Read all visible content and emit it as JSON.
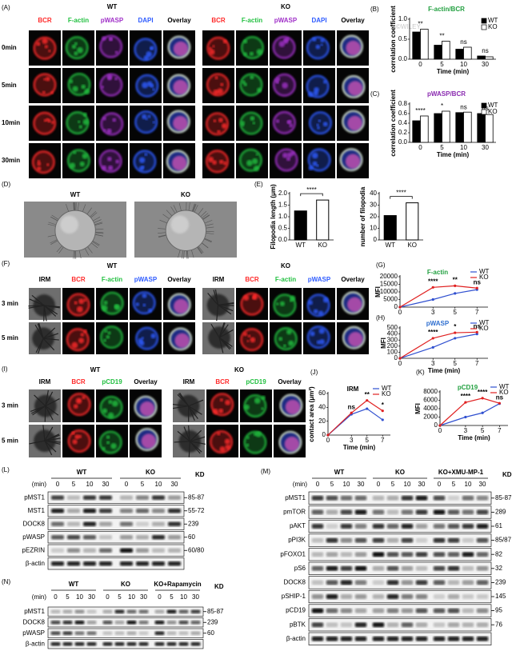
{
  "watermark": "©WILEY",
  "A": {
    "panel": "(A)",
    "groups": [
      "WT",
      "KO"
    ],
    "channels": [
      {
        "name": "BCR",
        "color": "#ff2a2a"
      },
      {
        "name": "F-actin",
        "color": "#22c040"
      },
      {
        "name": "pWASP",
        "color": "#a030c8"
      },
      {
        "name": "DAPI",
        "color": "#2f5cff"
      },
      {
        "name": "Overlay",
        "color": "#000000"
      }
    ],
    "rows": [
      "0min",
      "5min",
      "10min",
      "30min"
    ]
  },
  "D": {
    "panel": "(D)",
    "groups": [
      "WT",
      "KO"
    ]
  },
  "F": {
    "panel": "(F)",
    "groups": [
      "WT",
      "KO"
    ],
    "channels": [
      {
        "name": "IRM",
        "color": "#000000"
      },
      {
        "name": "BCR",
        "color": "#ff2a2a"
      },
      {
        "name": "F-actin",
        "color": "#22c040"
      },
      {
        "name": "pWASP",
        "color": "#2f5cff"
      },
      {
        "name": "Overlay",
        "color": "#000000"
      }
    ],
    "rows": [
      "3 min",
      "5 min"
    ]
  },
  "I": {
    "panel": "(I)",
    "groups": [
      "WT",
      "KO"
    ],
    "channels": [
      {
        "name": "IRM",
        "color": "#000000"
      },
      {
        "name": "BCR",
        "color": "#ff2a2a"
      },
      {
        "name": "pCD19",
        "color": "#22c040"
      },
      {
        "name": "Overlay",
        "color": "#000000"
      }
    ],
    "rows": [
      "3 min",
      "5 min"
    ]
  },
  "L": {
    "panel": "(L)",
    "unit": "(min)",
    "kd_label": "KD",
    "groups": [
      "WT",
      "KO"
    ],
    "times": [
      0,
      5,
      10,
      30
    ],
    "rows": [
      {
        "name": "pMST1",
        "kd": "85-87"
      },
      {
        "name": "MST1",
        "kd": "55-72"
      },
      {
        "name": "DOCK8",
        "kd": "239"
      },
      {
        "name": "pWASP",
        "kd": "60"
      },
      {
        "name": "pEZRIN",
        "kd": "60/80"
      },
      {
        "name": "β-actin"
      }
    ]
  },
  "M": {
    "panel": "(M)",
    "unit": "(min)",
    "kd_label": "KD",
    "groups": [
      "WT",
      "KO",
      "KO+XMU-MP-1"
    ],
    "times": [
      0,
      5,
      10,
      30
    ],
    "rows": [
      {
        "name": "pMST1",
        "kd": "85-87"
      },
      {
        "name": "pmTOR",
        "kd": "289"
      },
      {
        "name": "pAKT",
        "kd": "61"
      },
      {
        "name": "pPI3K",
        "kd": "85/87"
      },
      {
        "name": "pFOXO1",
        "kd": "82"
      },
      {
        "name": "pS6",
        "kd": "32"
      },
      {
        "name": "DOCK8",
        "kd": "239"
      },
      {
        "name": "pSHIP-1",
        "kd": "145"
      },
      {
        "name": "pCD19",
        "kd": "95"
      },
      {
        "name": "pBTK",
        "kd": "76"
      },
      {
        "name": "β-actin"
      }
    ]
  },
  "N": {
    "panel": "(N)",
    "unit": "(min)",
    "kd_label": "KD",
    "groups": [
      "WT",
      "KO",
      "KO+Rapamycin"
    ],
    "times": [
      0,
      5,
      10,
      30
    ],
    "rows": [
      {
        "name": "pMST1",
        "kd": "85-87"
      },
      {
        "name": "DOCK8",
        "kd": "239"
      },
      {
        "name": "pWASP",
        "kd": "60"
      },
      {
        "name": "β-actin"
      }
    ]
  },
  "chart_data": [
    {
      "type": "bar",
      "panel": "(B)",
      "title": "F-actin/BCR",
      "title_color": "#22a040",
      "categories": [
        "0",
        "5",
        "10",
        "30"
      ],
      "series": [
        {
          "name": "WT",
          "color": "#000000",
          "values": [
            0.68,
            0.35,
            0.25,
            0.08
          ]
        },
        {
          "name": "KO",
          "color": "#ffffff",
          "values": [
            0.75,
            0.45,
            0.3,
            0.06
          ]
        }
      ],
      "annotations": [
        "**",
        "**",
        "ns",
        "ns"
      ],
      "xlabel": "Time (min)",
      "ylabel": "correlation coefficient",
      "ylim": [
        0,
        1
      ],
      "yticks": [
        {
          "value": 0,
          "label": "0.0"
        },
        {
          "value": 0.5,
          "label": "0.5"
        },
        {
          "value": 1,
          "label": "1.0"
        }
      ]
    },
    {
      "type": "bar",
      "panel": "(C)",
      "title": "pWASP/BCR",
      "title_color": "#8a2ab0",
      "categories": [
        "0",
        "5",
        "10",
        "30"
      ],
      "series": [
        {
          "name": "WT",
          "color": "#000000",
          "values": [
            0.45,
            0.6,
            0.62,
            0.6
          ]
        },
        {
          "name": "KO",
          "color": "#ffffff",
          "values": [
            0.55,
            0.65,
            0.63,
            0.58
          ]
        }
      ],
      "annotations": [
        "****",
        "*",
        "ns",
        "ns"
      ],
      "xlabel": "Time (min)",
      "ylabel": "correlation coefficient",
      "ylim": [
        0,
        0.8
      ],
      "yticks": [
        {
          "value": 0,
          "label": "0.0"
        },
        {
          "value": 0.2,
          "label": "0.2"
        },
        {
          "value": 0.4,
          "label": "0.4"
        },
        {
          "value": 0.6,
          "label": "0.6"
        },
        {
          "value": 0.8,
          "label": "0.8"
        }
      ]
    },
    {
      "type": "bar",
      "panel": "(E)",
      "categories": [
        "WT",
        "KO"
      ],
      "values": [
        1.25,
        1.72
      ],
      "colors": [
        "#000000",
        "#ffffff"
      ],
      "annotation": "****",
      "ylabel": "Filopodia length (μm)",
      "ylim": [
        0,
        2
      ],
      "yticks": [
        {
          "value": 0,
          "label": "0.0"
        },
        {
          "value": 0.5,
          "label": "0.5"
        },
        {
          "value": 1,
          "label": "1.0"
        },
        {
          "value": 1.5,
          "label": "1.5"
        },
        {
          "value": 2,
          "label": "2.0"
        }
      ]
    },
    {
      "type": "bar",
      "categories": [
        "WT",
        "KO"
      ],
      "values": [
        21,
        32
      ],
      "colors": [
        "#000000",
        "#ffffff"
      ],
      "annotation": "****",
      "ylabel": "number of filopodia",
      "ylim": [
        0,
        40
      ],
      "yticks": [
        0,
        10,
        20,
        30,
        40
      ]
    },
    {
      "type": "line",
      "panel": "(G)",
      "title": "F-actin",
      "title_color": "#22a040",
      "x": [
        0,
        3,
        5,
        7
      ],
      "xlim": [
        0,
        8
      ],
      "xticks": [
        0,
        3,
        5,
        7
      ],
      "series": [
        {
          "name": "WT",
          "color": "#3050d0",
          "values": [
            0,
            5000,
            9000,
            11500
          ]
        },
        {
          "name": "KO",
          "color": "#e02020",
          "values": [
            0,
            13000,
            14000,
            12500
          ]
        }
      ],
      "annotations": [
        {
          "x": 3,
          "text": "****"
        },
        {
          "x": 5,
          "text": "**"
        },
        {
          "x": 7,
          "text": "ns"
        }
      ],
      "ylabel": "MFI",
      "ylim": [
        0,
        20000
      ],
      "yticks": [
        0,
        5000,
        10000,
        15000,
        20000
      ]
    },
    {
      "type": "line",
      "panel": "(H)",
      "title": "pWASP",
      "title_color": "#2f6fd0",
      "x": [
        0,
        3,
        5,
        7
      ],
      "xlim": [
        0,
        8
      ],
      "xticks": [
        0,
        3,
        5,
        7
      ],
      "xlabel": "Time (min)",
      "series": [
        {
          "name": "WT",
          "color": "#3050d0",
          "values": [
            0,
            180,
            330,
            400
          ]
        },
        {
          "name": "KO",
          "color": "#e02020",
          "values": [
            0,
            330,
            420,
            430
          ]
        }
      ],
      "annotations": [
        {
          "x": 3,
          "text": "****"
        },
        {
          "x": 5,
          "text": "*"
        },
        {
          "x": 7,
          "text": "ns"
        }
      ],
      "ylabel": "MFI",
      "ylim": [
        0,
        500
      ],
      "yticks": [
        0,
        100,
        200,
        300,
        400,
        500
      ]
    },
    {
      "type": "line",
      "panel": "(J)",
      "title": "IRM",
      "title_color": "#000000",
      "x": [
        0,
        3,
        5,
        7
      ],
      "xlim": [
        0,
        8
      ],
      "xticks": [
        0,
        3,
        5,
        7
      ],
      "xlabel": "Time (min)",
      "series": [
        {
          "name": "WT",
          "color": "#3050d0",
          "values": [
            0,
            30,
            38,
            22
          ]
        },
        {
          "name": "KO",
          "color": "#e02020",
          "values": [
            0,
            32,
            50,
            35
          ]
        }
      ],
      "annotations": [
        {
          "x": 3,
          "text": "ns"
        },
        {
          "x": 5,
          "text": "**"
        },
        {
          "x": 7,
          "text": "*"
        }
      ],
      "ylabel": "contact area (μm²)",
      "ylim": [
        0,
        60
      ],
      "yticks": [
        0,
        20,
        40,
        60
      ]
    },
    {
      "type": "line",
      "panel": "(K)",
      "title": "pCD19",
      "title_color": "#22a040",
      "x": [
        0,
        3,
        5,
        7
      ],
      "xlim": [
        0,
        8
      ],
      "xticks": [
        0,
        3,
        5,
        7
      ],
      "xlabel": "Time (min)",
      "series": [
        {
          "name": "WT",
          "color": "#3050d0",
          "values": [
            0,
            2000,
            3000,
            5200
          ]
        },
        {
          "name": "KO",
          "color": "#e02020",
          "values": [
            0,
            5500,
            6500,
            5300
          ]
        }
      ],
      "annotations": [
        {
          "x": 3,
          "text": "****"
        },
        {
          "x": 5,
          "text": "****"
        },
        {
          "x": 7,
          "text": "ns"
        }
      ],
      "ylabel": "MFI",
      "ylim": [
        0,
        8000
      ],
      "yticks": [
        0,
        2000,
        4000,
        6000,
        8000
      ]
    }
  ]
}
